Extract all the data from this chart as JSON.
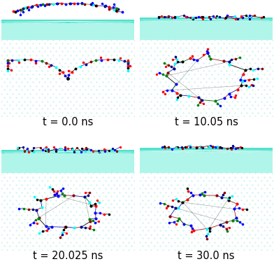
{
  "panels": [
    {
      "label": "t = 0.0 ns",
      "r": 0,
      "c": 0
    },
    {
      "label": "t = 10.05 ns",
      "r": 0,
      "c": 1
    },
    {
      "label": "t = 20.025 ns",
      "r": 1,
      "c": 0
    },
    {
      "label": "t = 30.0 ns",
      "r": 1,
      "c": 1
    }
  ],
  "bg_white": "#ffffff",
  "panel_bg": "#e8faf8",
  "water_surface_color": "#40e0c8",
  "water_body_color": "#70edd8",
  "dot_color": "#b0ece4",
  "label_fontsize": 10.5,
  "fig_width": 3.92,
  "fig_height": 3.77,
  "dpi": 100
}
